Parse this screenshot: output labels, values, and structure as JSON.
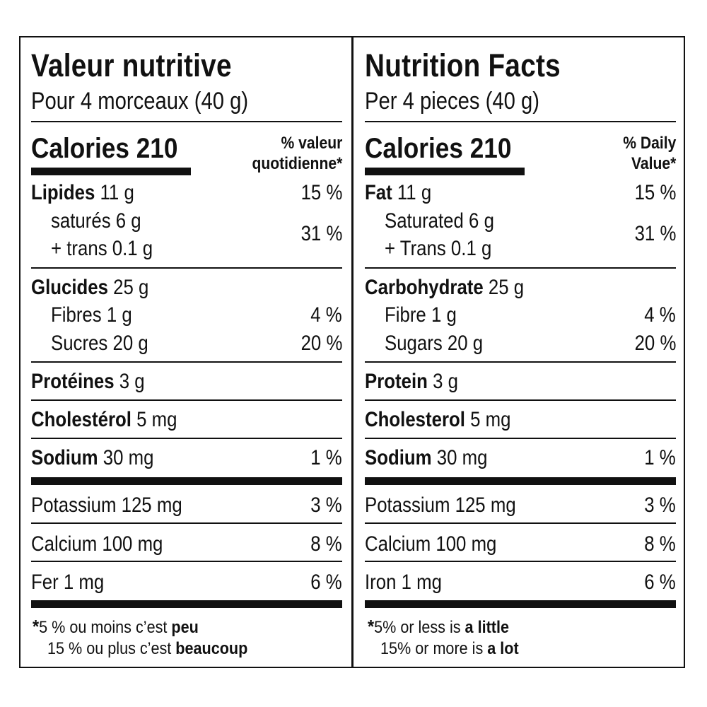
{
  "fr": {
    "title": "Valeur nutritive",
    "serving": "Pour 4 morceaux (40 g)",
    "calories_label": "Calories",
    "calories_value": "210",
    "dv_line1": "% valeur",
    "dv_line2": "quotidienne",
    "asterisk": "*",
    "fat_label": "Lipides",
    "fat_amount": "11 g",
    "fat_pct": "15 %",
    "sat_label": "saturés 6 g",
    "trans_label": "+ trans 0.1 g",
    "sat_trans_pct": "31 %",
    "carb_label": "Glucides",
    "carb_amount": "25 g",
    "fibre_label": "Fibres 1 g",
    "fibre_pct": "4 %",
    "sugars_label": "Sucres 20 g",
    "sugars_pct": "20 %",
    "protein_label": "Protéines",
    "protein_amount": "3 g",
    "chol_label": "Cholestérol",
    "chol_amount": "5 mg",
    "sodium_label": "Sodium",
    "sodium_amount": "30 mg",
    "sodium_pct": "1 %",
    "potassium_label": "Potassium 125 mg",
    "potassium_pct": "3 %",
    "calcium_label": "Calcium 100 mg",
    "calcium_pct": "8 %",
    "iron_label": "Fer 1 mg",
    "iron_pct": "6 %",
    "foot1_pre": "5 % ou moins c’est ",
    "foot1_bold": "peu",
    "foot2_pre": "15 % ou plus c’est ",
    "foot2_bold": "beaucoup"
  },
  "en": {
    "title": "Nutrition Facts",
    "serving": "Per 4 pieces (40 g)",
    "calories_label": "Calories",
    "calories_value": "210",
    "dv_line1": "% Daily",
    "dv_line2": "Value",
    "asterisk": "*",
    "fat_label": "Fat",
    "fat_amount": "11 g",
    "fat_pct": "15 %",
    "sat_label": "Saturated 6 g",
    "trans_label": "+ Trans 0.1 g",
    "sat_trans_pct": "31 %",
    "carb_label": "Carbohydrate",
    "carb_amount": "25 g",
    "fibre_label": "Fibre 1 g",
    "fibre_pct": "4 %",
    "sugars_label": "Sugars 20 g",
    "sugars_pct": "20 %",
    "protein_label": "Protein",
    "protein_amount": "3 g",
    "chol_label": "Cholesterol",
    "chol_amount": "5 mg",
    "sodium_label": "Sodium",
    "sodium_amount": "30 mg",
    "sodium_pct": "1 %",
    "potassium_label": "Potassium 125 mg",
    "potassium_pct": "3 %",
    "calcium_label": "Calcium 100 mg",
    "calcium_pct": "8 %",
    "iron_label": "Iron 1 mg",
    "iron_pct": "6 %",
    "foot1_pre": "5% or less is ",
    "foot1_bold": "a little",
    "foot2_pre": "15% or more is ",
    "foot2_bold": "a lot"
  }
}
